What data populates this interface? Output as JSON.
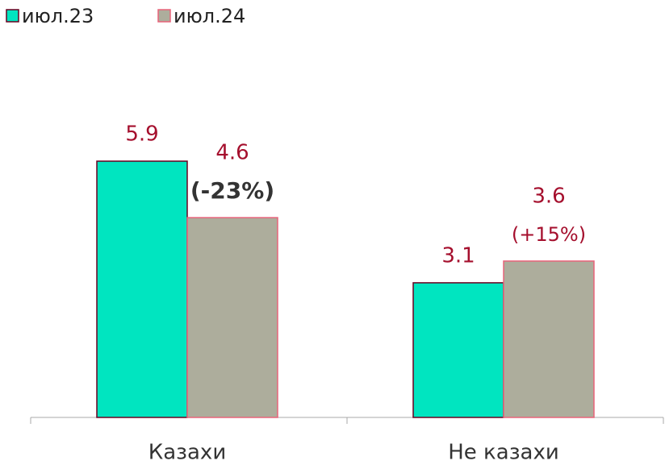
{
  "chart_data": {
    "type": "bar",
    "categories": [
      "Казахи",
      "Не казахи"
    ],
    "series": [
      {
        "name": "июл.23",
        "color": "#00e5c0",
        "border": "#6b0020",
        "values": [
          5.9,
          3.1
        ]
      },
      {
        "name": "июл.24",
        "color": "#adad9c",
        "border": "#e8637a",
        "values": [
          4.6,
          3.6
        ]
      }
    ],
    "value_label_color": "#a50f2d",
    "annotations": [
      {
        "text": "(-23%)",
        "color": "#333333",
        "bold": true
      },
      {
        "text": "(+15%)",
        "color": "#a50f2d",
        "bold": false
      }
    ],
    "legend": "top-left"
  }
}
